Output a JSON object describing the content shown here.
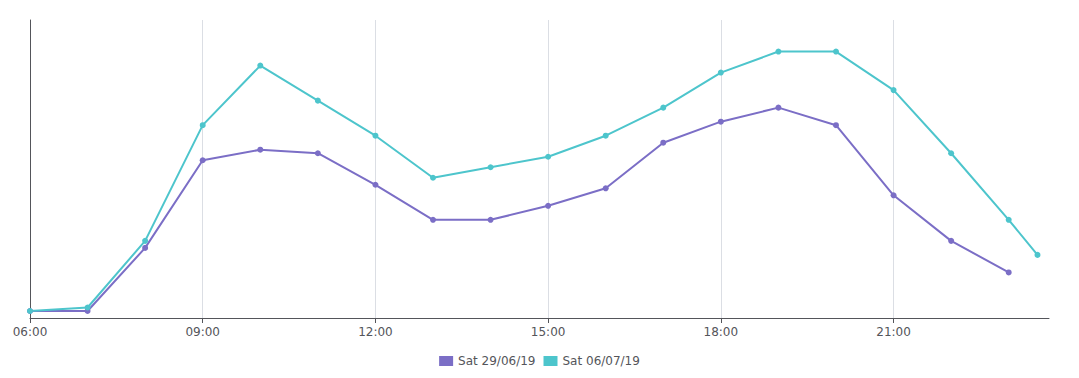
{
  "chart_data": {
    "type": "line",
    "series": [
      {
        "name": "Sat 29/06/19",
        "color": "#7b6ec6",
        "marker": "circle",
        "x": [
          6,
          7,
          8,
          9,
          10,
          11,
          12,
          13,
          14,
          15,
          16,
          17,
          18,
          19,
          20,
          21,
          22,
          23
        ],
        "values": [
          2,
          2,
          20,
          45,
          48,
          47,
          38,
          28,
          28,
          32,
          37,
          50,
          56,
          60,
          55,
          35,
          22,
          13
        ]
      },
      {
        "name": "Sat 06/07/19",
        "color": "#4dc5cc",
        "marker": "circle",
        "x": [
          6,
          7,
          8,
          9,
          10,
          11,
          12,
          13,
          14,
          15,
          16,
          17,
          18,
          19,
          20,
          21,
          22,
          23,
          23.5
        ],
        "values": [
          2,
          3,
          22,
          55,
          72,
          62,
          52,
          40,
          43,
          46,
          52,
          60,
          70,
          76,
          76,
          65,
          47,
          28,
          18
        ]
      }
    ],
    "xlim": [
      6.0,
      23.7
    ],
    "xticks": [
      {
        "value": 6,
        "label": "06:00"
      },
      {
        "value": 9,
        "label": "09:00"
      },
      {
        "value": 12,
        "label": "12:00"
      },
      {
        "value": 15,
        "label": "15:00"
      },
      {
        "value": 18,
        "label": "18:00"
      },
      {
        "value": 21,
        "label": "21:00"
      }
    ],
    "ylim": [
      0,
      85
    ],
    "yticks": [],
    "tick_labels": "x",
    "grid": true,
    "legend": "bottom"
  }
}
